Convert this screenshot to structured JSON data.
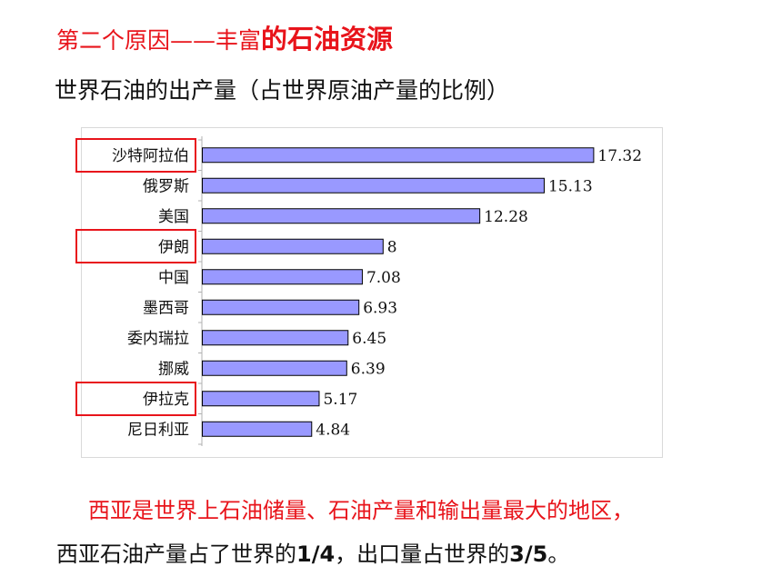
{
  "heading": {
    "part1": "第二个原因——丰富",
    "part2": "的石油资源"
  },
  "subtitle": "世界石油的出产量（占世界原油产量的比例）",
  "chart_data": {
    "type": "bar",
    "orientation": "horizontal",
    "categories": [
      "沙特阿拉伯",
      "俄罗斯",
      "美国",
      "伊朗",
      "中国",
      "墨西哥",
      "委内瑞拉",
      "挪威",
      "伊拉克",
      "尼日利亚"
    ],
    "values": [
      17.32,
      15.13,
      12.28,
      8,
      7.08,
      6.93,
      6.45,
      6.39,
      5.17,
      4.84
    ],
    "value_labels": [
      "17.32",
      "15.13",
      "12.28",
      "8",
      "7.08",
      "6.93",
      "6.45",
      "6.39",
      "5.17",
      "4.84"
    ],
    "xlim": [
      0,
      20
    ],
    "bar_color": "#9999ff",
    "highlighted": [
      "沙特阿拉伯",
      "伊朗",
      "伊拉克"
    ],
    "highlight_color": "#e8141b"
  },
  "notes": {
    "line1": "西亚是世界上石油储量、石油产量和输出量最大的地区，",
    "line2_a": "西亚石油产量占了世界的",
    "line2_b": "1/4",
    "line2_c": "，出口量占世界的",
    "line2_d": "3/5",
    "line2_e": "。"
  }
}
